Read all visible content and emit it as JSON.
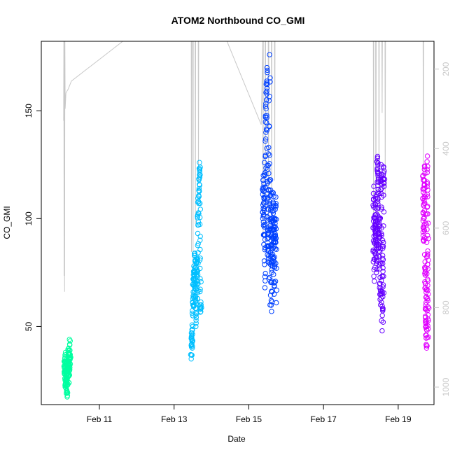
{
  "chart_data": {
    "type": "scatter",
    "title": "ATOM2 Northbound CO_GMI",
    "xlabel": "Date",
    "ylabel": "CO_GMI",
    "x_range": [
      "2018-02-09T10:40",
      "2018-02-19T23:00"
    ],
    "x_ticks": [
      "Feb 11",
      "Feb 13",
      "Feb 15",
      "Feb 17",
      "Feb 19"
    ],
    "x_tick_dates": [
      "2018-02-11",
      "2018-02-13",
      "2018-02-15",
      "2018-02-17",
      "2018-02-19"
    ],
    "ylim": [
      13.8,
      182.2
    ],
    "y_ticks": [
      50,
      100,
      150
    ],
    "y2_label": "",
    "y2_ticks": [
      200,
      400,
      600,
      800,
      1000
    ],
    "y2_lim": [
      1044,
      130
    ],
    "y2_reversed": true,
    "pressure_color": "#c8c8c8",
    "series": [
      {
        "color": "#00ffa0",
        "points": [
          [
            "2018-02-10T01:30",
            28
          ],
          [
            "2018-02-10T01:45",
            35
          ],
          [
            "2018-02-10T02:00",
            22
          ],
          [
            "2018-02-10T02:15",
            38
          ],
          [
            "2018-02-10T02:30",
            25
          ],
          [
            "2018-02-10T02:45",
            19
          ],
          [
            "2018-02-10T03:00",
            33
          ],
          [
            "2018-02-10T03:15",
            30
          ],
          [
            "2018-02-10T03:30",
            18
          ],
          [
            "2018-02-10T03:45",
            36
          ],
          [
            "2018-02-10T04:00",
            27
          ],
          [
            "2018-02-10T04:15",
            40
          ],
          [
            "2018-02-10T04:30",
            24
          ],
          [
            "2018-02-10T04:45",
            44
          ],
          [
            "2018-02-10T05:00",
            31
          ],
          [
            "2018-02-10T05:15",
            37
          ]
        ]
      },
      {
        "color": "#00bfff",
        "points": [
          [
            "2018-02-13T11:00",
            35
          ],
          [
            "2018-02-13T11:20",
            47
          ],
          [
            "2018-02-13T11:40",
            40
          ],
          [
            "2018-02-13T12:00",
            55
          ],
          [
            "2018-02-13T12:20",
            66
          ],
          [
            "2018-02-13T12:40",
            78
          ],
          [
            "2018-02-13T13:00",
            60
          ],
          [
            "2018-02-13T13:20",
            84
          ],
          [
            "2018-02-13T13:40",
            70
          ],
          [
            "2018-02-13T14:00",
            50
          ],
          [
            "2018-02-13T14:20",
            74
          ],
          [
            "2018-02-13T14:40",
            82
          ],
          [
            "2018-02-13T15:00",
            63
          ],
          [
            "2018-02-13T15:20",
            97
          ],
          [
            "2018-02-13T15:40",
            108
          ],
          [
            "2018-02-13T16:00",
            118
          ],
          [
            "2018-02-13T16:20",
            126
          ],
          [
            "2018-02-13T16:40",
            90
          ],
          [
            "2018-02-13T17:00",
            58
          ],
          [
            "2018-02-13T17:20",
            60
          ]
        ]
      },
      {
        "color": "#0040ff",
        "points": [
          [
            "2018-02-15T09:00",
            100
          ],
          [
            "2018-02-15T09:20",
            120
          ],
          [
            "2018-02-15T09:40",
            88
          ],
          [
            "2018-02-15T10:00",
            126
          ],
          [
            "2018-02-15T10:20",
            68
          ],
          [
            "2018-02-15T10:40",
            110
          ],
          [
            "2018-02-15T11:00",
            140
          ],
          [
            "2018-02-15T11:20",
            155
          ],
          [
            "2018-02-15T11:40",
            170
          ],
          [
            "2018-02-15T12:00",
            95
          ],
          [
            "2018-02-15T12:20",
            80
          ],
          [
            "2018-02-15T12:40",
            130
          ],
          [
            "2018-02-15T13:00",
            72
          ],
          [
            "2018-02-15T13:20",
            176
          ],
          [
            "2018-02-15T13:40",
            60
          ],
          [
            "2018-02-15T14:00",
            118
          ],
          [
            "2018-02-15T14:20",
            90
          ],
          [
            "2018-02-15T14:40",
            57
          ],
          [
            "2018-02-15T15:00",
            105
          ],
          [
            "2018-02-15T15:20",
            78
          ],
          [
            "2018-02-15T15:40",
            112
          ],
          [
            "2018-02-15T16:00",
            95
          ],
          [
            "2018-02-15T16:20",
            65
          ],
          [
            "2018-02-15T16:40",
            100
          ],
          [
            "2018-02-15T17:00",
            86
          ],
          [
            "2018-02-15T17:20",
            110
          ],
          [
            "2018-02-15T17:40",
            61
          ]
        ]
      },
      {
        "color": "#6600ff",
        "points": [
          [
            "2018-02-18T08:00",
            80
          ],
          [
            "2018-02-18T08:20",
            115
          ],
          [
            "2018-02-18T08:40",
            71
          ],
          [
            "2018-02-18T09:00",
            100
          ],
          [
            "2018-02-18T09:20",
            90
          ],
          [
            "2018-02-18T09:40",
            110
          ],
          [
            "2018-02-18T10:00",
            75
          ],
          [
            "2018-02-18T10:20",
            95
          ],
          [
            "2018-02-18T10:40",
            128
          ],
          [
            "2018-02-18T11:00",
            120
          ],
          [
            "2018-02-18T11:20",
            105
          ],
          [
            "2018-02-18T11:40",
            85
          ],
          [
            "2018-02-18T12:00",
            100
          ],
          [
            "2018-02-18T12:20",
            70
          ],
          [
            "2018-02-18T12:40",
            60
          ],
          [
            "2018-02-18T13:00",
            125
          ],
          [
            "2018-02-18T13:20",
            110
          ],
          [
            "2018-02-18T13:40",
            48
          ],
          [
            "2018-02-18T14:00",
            90
          ],
          [
            "2018-02-18T14:20",
            52
          ],
          [
            "2018-02-18T14:40",
            124
          ],
          [
            "2018-02-18T15:00",
            115
          ]
        ]
      },
      {
        "color": "#e000ff",
        "points": [
          [
            "2018-02-19T16:00",
            120
          ],
          [
            "2018-02-19T16:15",
            100
          ],
          [
            "2018-02-19T16:30",
            90
          ],
          [
            "2018-02-19T16:45",
            110
          ],
          [
            "2018-02-19T17:00",
            124
          ],
          [
            "2018-02-19T17:15",
            80
          ],
          [
            "2018-02-19T17:30",
            70
          ],
          [
            "2018-02-19T17:45",
            60
          ],
          [
            "2018-02-19T18:00",
            50
          ],
          [
            "2018-02-19T18:15",
            40
          ],
          [
            "2018-02-19T18:30",
            95
          ],
          [
            "2018-02-19T18:45",
            129
          ],
          [
            "2018-02-19T19:00",
            85
          ],
          [
            "2018-02-19T19:15",
            65
          ],
          [
            "2018-02-19T19:30",
            45
          ]
        ]
      }
    ],
    "pressure_series": [
      [
        "2018-02-10T01:00",
        330
      ],
      [
        "2018-02-10T01:10",
        130
      ],
      [
        "2018-02-10T01:20",
        720
      ],
      [
        "2018-02-10T01:30",
        130
      ],
      [
        "2018-02-10T01:40",
        760
      ],
      [
        "2018-02-10T01:50",
        130
      ],
      [
        "2018-02-10T02:00",
        300
      ],
      [
        "2018-02-10T02:30",
        260
      ],
      [
        "2018-02-10T04:00",
        250
      ],
      [
        "2018-02-10T06:00",
        230
      ],
      [
        "2018-02-11T15:00",
        130
      ],
      [
        "2018-02-13T11:00",
        130
      ],
      [
        "2018-02-13T11:10",
        660
      ],
      [
        "2018-02-13T11:20",
        130
      ],
      [
        "2018-02-13T12:00",
        130
      ],
      [
        "2018-02-13T12:10",
        700
      ],
      [
        "2018-02-13T12:20",
        130
      ],
      [
        "2018-02-13T13:30",
        130
      ],
      [
        "2018-02-13T13:40",
        590
      ],
      [
        "2018-02-13T13:50",
        130
      ],
      [
        "2018-02-13T15:30",
        130
      ],
      [
        "2018-02-13T15:40",
        480
      ],
      [
        "2018-02-13T15:50",
        130
      ],
      [
        "2018-02-14T10:00",
        130
      ],
      [
        "2018-02-15T08:00",
        340
      ],
      [
        "2018-02-15T09:00",
        130
      ],
      [
        "2018-02-15T09:10",
        620
      ],
      [
        "2018-02-15T09:20",
        130
      ],
      [
        "2018-02-15T10:30",
        130
      ],
      [
        "2018-02-15T10:40",
        650
      ],
      [
        "2018-02-15T10:50",
        130
      ],
      [
        "2018-02-15T12:30",
        130
      ],
      [
        "2018-02-15T12:40",
        600
      ],
      [
        "2018-02-15T12:50",
        130
      ],
      [
        "2018-02-15T14:30",
        130
      ],
      [
        "2018-02-15T14:40",
        520
      ],
      [
        "2018-02-15T14:50",
        130
      ],
      [
        "2018-02-15T16:30",
        130
      ],
      [
        "2018-02-15T16:40",
        480
      ],
      [
        "2018-02-15T16:50",
        130
      ],
      [
        "2018-02-18T08:00",
        130
      ],
      [
        "2018-02-18T08:10",
        650
      ],
      [
        "2018-02-18T08:20",
        130
      ],
      [
        "2018-02-18T09:30",
        130
      ],
      [
        "2018-02-18T09:40",
        620
      ],
      [
        "2018-02-18T09:50",
        130
      ],
      [
        "2018-02-18T11:30",
        130
      ],
      [
        "2018-02-18T11:40",
        560
      ],
      [
        "2018-02-18T11:50",
        130
      ],
      [
        "2018-02-18T13:30",
        130
      ],
      [
        "2018-02-18T13:40",
        310
      ],
      [
        "2018-02-18T13:50",
        130
      ],
      [
        "2018-02-18T15:30",
        130
      ],
      [
        "2018-02-18T15:40",
        520
      ],
      [
        "2018-02-18T15:50",
        130
      ],
      [
        "2018-02-19T16:00",
        130
      ],
      [
        "2018-02-19T16:10",
        480
      ],
      [
        "2018-02-19T16:20",
        130
      ]
    ],
    "grid": false,
    "legend": "none"
  }
}
